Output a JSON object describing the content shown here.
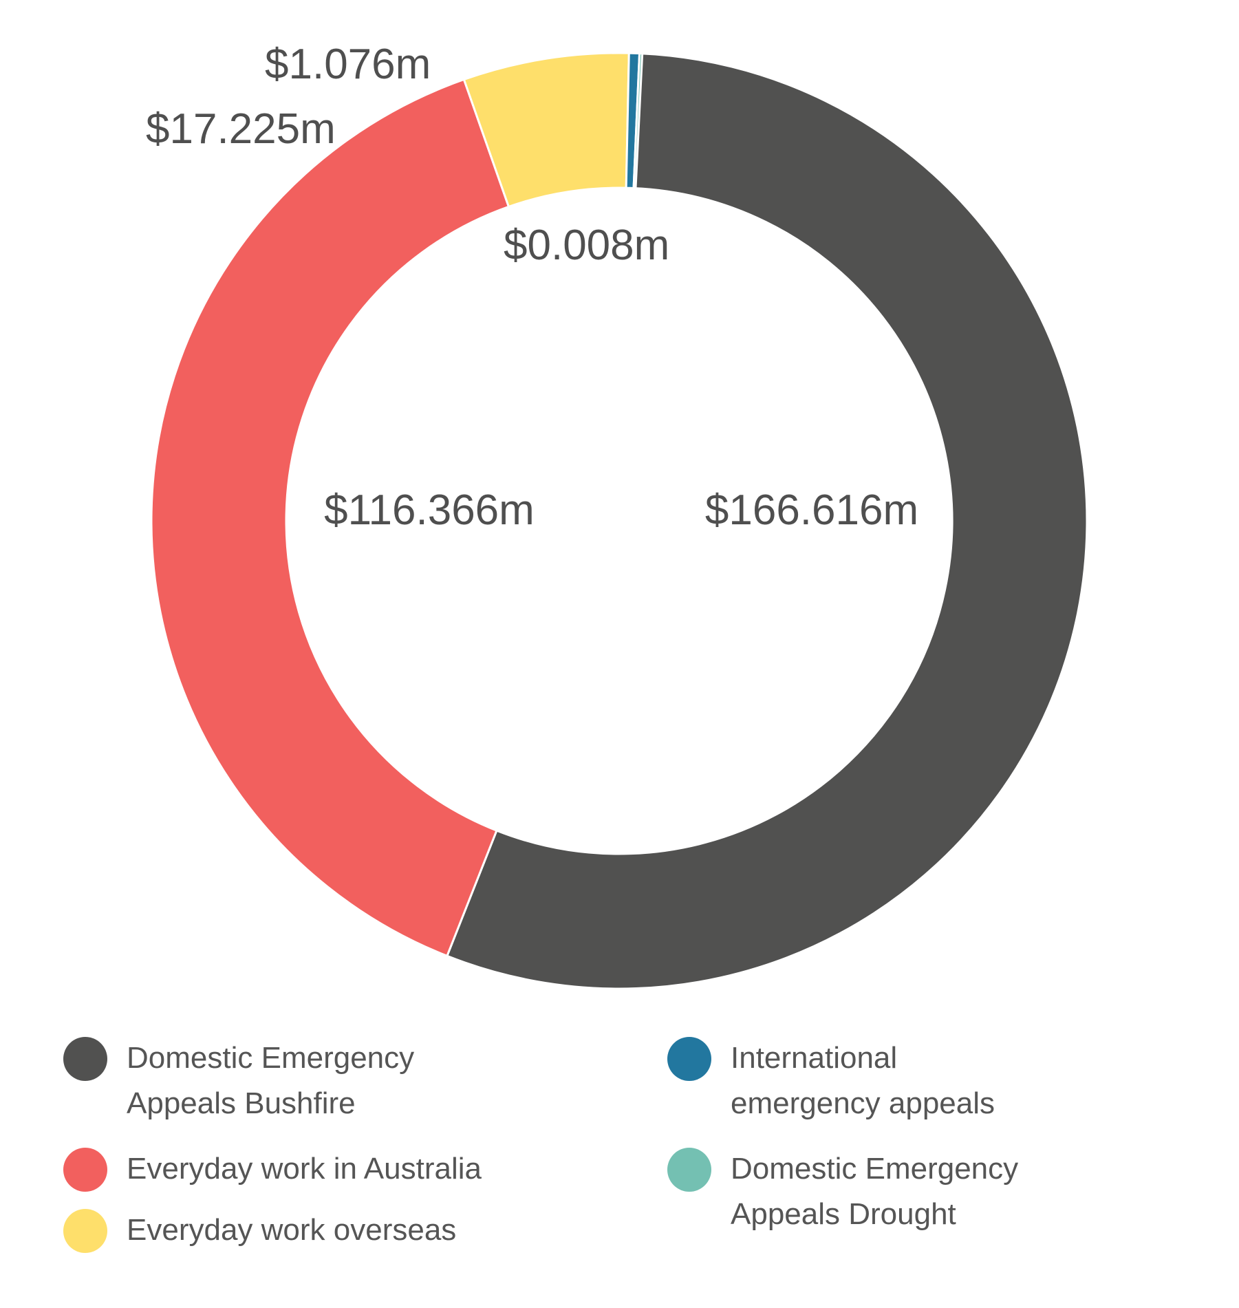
{
  "chart_data": {
    "type": "pie",
    "variant": "donut",
    "title": "",
    "series": [
      {
        "name": "Domestic Emergency Appeals Bushfire",
        "value": 166.616,
        "label": "$166.616m",
        "color": "#515150"
      },
      {
        "name": "Everyday work in Australia",
        "value": 116.366,
        "label": "$116.366m",
        "color": "#f2605e"
      },
      {
        "name": "Everyday work overseas",
        "value": 17.225,
        "label": "$17.225m",
        "color": "#fedf6b"
      },
      {
        "name": "International emergency appeals",
        "value": 1.076,
        "label": "$1.076m",
        "color": "#22779f"
      },
      {
        "name": "Domestic Emergency Appeals Drought",
        "value": 0.008,
        "label": "$0.008m",
        "color": "#74c0b2"
      }
    ],
    "legend_position": "bottom",
    "legend": [
      {
        "lines": [
          "Domestic Emergency",
          "Appeals Bushfire"
        ],
        "color": "#515150"
      },
      {
        "lines": [
          "Everyday work in Australia"
        ],
        "color": "#f2605e"
      },
      {
        "lines": [
          "Everyday work overseas"
        ],
        "color": "#fedf6b"
      },
      {
        "lines": [
          "International",
          "emergency appeals"
        ],
        "color": "#22779f"
      },
      {
        "lines": [
          "Domestic Emergency",
          "Appeals Drought"
        ],
        "color": "#74c0b2"
      }
    ]
  }
}
